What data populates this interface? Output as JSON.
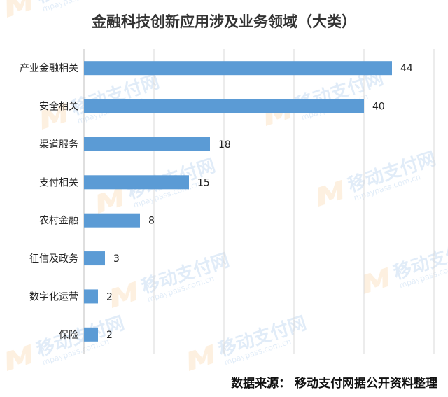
{
  "chart_data": {
    "type": "bar",
    "orientation": "horizontal",
    "title": "金融科技创新应用涉及业务领域（大类）",
    "categories": [
      "产业金融相关",
      "安全相关",
      "渠道服务",
      "支付相关",
      "农村金融",
      "征信及政务",
      "数字化运营",
      "保险"
    ],
    "values": [
      44,
      40,
      18,
      15,
      8,
      3,
      2,
      2
    ],
    "xlim": [
      0,
      50
    ],
    "grid": "vertical",
    "bar_color": "#5b9bd5",
    "legend": "none"
  },
  "source": "数据来源： 移动支付网据公开资料整理",
  "watermark": {
    "text": "移动支付网",
    "url": "mpaypass.com.cn"
  }
}
